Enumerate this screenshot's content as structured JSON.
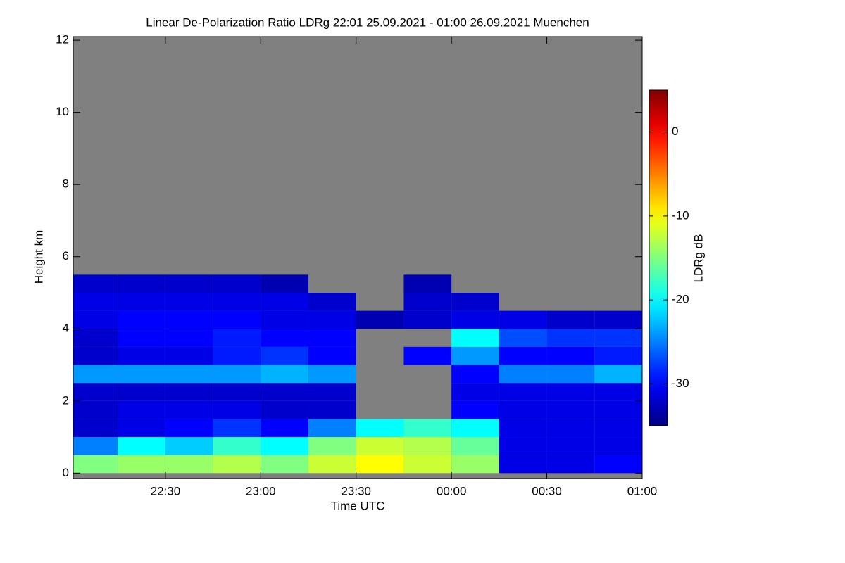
{
  "chart_data": {
    "type": "heatmap",
    "title": "Linear De-Polarization Ratio LDRg   22:01 25.09.2021 - 01:00 26.09.2021 Muenchen",
    "x_label": "Time UTC",
    "y_label": "Height km",
    "x": [
      22.125,
      22.375,
      22.625,
      22.875,
      23.125,
      23.375,
      23.625,
      23.875,
      24.125,
      24.375,
      24.625,
      24.875
    ],
    "y": [
      0.25,
      0.75,
      1.25,
      1.75,
      2.25,
      2.75,
      3.25,
      3.75,
      4.25,
      4.75,
      5.25,
      5.75
    ],
    "z": [
      [
        -15,
        -14,
        -14,
        -13,
        -15,
        -12,
        -10,
        -12,
        -14,
        -31,
        -31,
        -30
      ],
      [
        -25,
        -20,
        -22,
        -18,
        -20,
        -15,
        -12,
        -13,
        -16,
        -31,
        -31,
        -31
      ],
      [
        -32,
        -31,
        -30,
        -28,
        -30,
        -25,
        -20,
        -18,
        -20,
        -31,
        -31,
        -31
      ],
      [
        -32,
        -31,
        -31,
        -31,
        -32,
        -32,
        null,
        null,
        -30,
        -31,
        -31,
        -31
      ],
      [
        -32,
        -32,
        -32,
        -32,
        -32,
        -32,
        null,
        null,
        -31,
        -31,
        -31,
        -31
      ],
      [
        -24,
        -24,
        -24,
        -24,
        -23,
        -24,
        null,
        null,
        -30,
        -25,
        -25,
        -23
      ],
      [
        -32,
        -31,
        -31,
        -29,
        -28,
        -30,
        null,
        -30,
        -24,
        -30,
        -30,
        -29
      ],
      [
        -32,
        -30,
        -30,
        -29,
        -30,
        -30,
        null,
        null,
        -20,
        -27,
        -28,
        -28
      ],
      [
        -31,
        -30,
        -30,
        -30,
        -31,
        -31,
        -33,
        -32,
        -31,
        -31,
        -32,
        -32
      ],
      [
        -31,
        -31,
        -31,
        -31,
        -31,
        -32,
        null,
        -32,
        -32,
        null,
        null,
        null
      ],
      [
        -32,
        -32,
        -32,
        -32,
        -33,
        null,
        null,
        -33,
        null,
        null,
        null,
        null
      ],
      [
        null,
        null,
        null,
        null,
        null,
        null,
        null,
        null,
        null,
        null,
        null,
        null
      ]
    ],
    "xlim": [
      22.0167,
      25.0
    ],
    "xticks": [
      {
        "value": 22.5,
        "label": "22:30"
      },
      {
        "value": 23.0,
        "label": "23:00"
      },
      {
        "value": 23.5,
        "label": "23:30"
      },
      {
        "value": 24.0,
        "label": "00:00"
      },
      {
        "value": 24.5,
        "label": "00:30"
      },
      {
        "value": 25.0,
        "label": "01:00"
      }
    ],
    "ylim": [
      -0.15,
      12.1
    ],
    "yticks": [
      0,
      2,
      4,
      6,
      8,
      10,
      12
    ],
    "colorbar_label": "LDRg dB",
    "colorbar_lim": [
      -35,
      5
    ],
    "colorbar_ticks": [
      0,
      -10,
      -20,
      -30
    ],
    "colormap": "jet",
    "missing_color": "#808080"
  }
}
